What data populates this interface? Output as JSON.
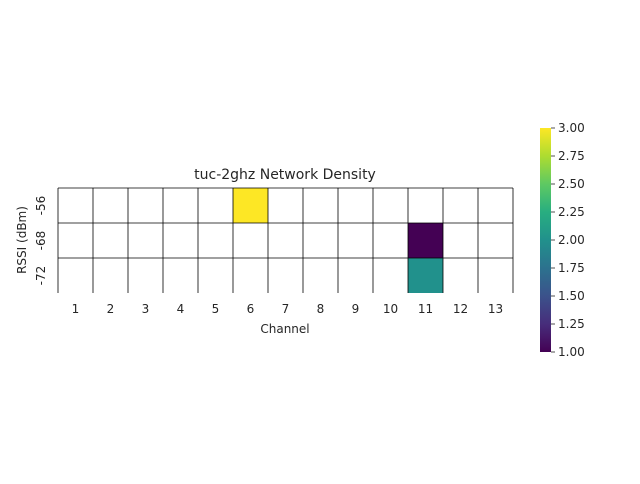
{
  "chart_data": {
    "type": "heatmap",
    "title": "tuc-2ghz Network Density",
    "xlabel": "Channel",
    "ylabel": "RSSI (dBm)",
    "x_categories": [
      "1",
      "2",
      "3",
      "4",
      "5",
      "6",
      "7",
      "8",
      "9",
      "10",
      "11",
      "12",
      "13"
    ],
    "y_categories": [
      "-56",
      "-68",
      "-72"
    ],
    "cells": [
      {
        "x": "6",
        "y": "-56",
        "value": 3
      },
      {
        "x": "11",
        "y": "-68",
        "value": 1
      },
      {
        "x": "11",
        "y": "-72",
        "value": 2
      }
    ],
    "colorbar": {
      "colormap": "viridis",
      "range": [
        1.0,
        3.0
      ],
      "ticks": [
        "1.00",
        "1.25",
        "1.50",
        "1.75",
        "2.00",
        "2.25",
        "2.50",
        "2.75",
        "3.00"
      ]
    },
    "grid": true,
    "empty_cell_color": "#ffffff",
    "gridline_color": "#000000"
  }
}
